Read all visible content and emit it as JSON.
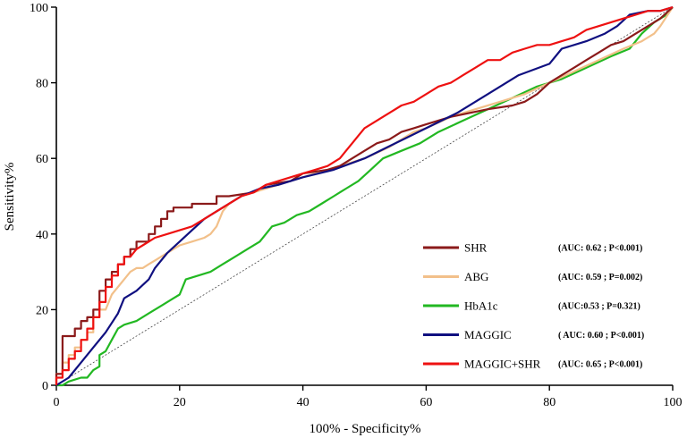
{
  "chart_data": {
    "type": "line",
    "title": "",
    "xlabel": "100% - Specificity%",
    "ylabel": "Sensitivity%",
    "xlim": [
      0,
      100
    ],
    "ylim": [
      0,
      100
    ],
    "xticks": [
      "0",
      "20",
      "40",
      "60",
      "80",
      "100"
    ],
    "yticks": [
      "0",
      "20",
      "40",
      "60",
      "80",
      "100"
    ],
    "grid": false,
    "legend_position": "bottom-right",
    "reference_line": {
      "name": "chance",
      "points": [
        [
          0,
          0
        ],
        [
          100,
          100
        ]
      ]
    },
    "series": [
      {
        "name": "SHR",
        "stat": "(AUC: 0.62 ; P<0.001)",
        "color": "#8b1a1a",
        "points": [
          [
            0,
            0
          ],
          [
            0,
            3
          ],
          [
            1,
            3
          ],
          [
            1,
            13
          ],
          [
            3,
            13
          ],
          [
            3,
            15
          ],
          [
            4,
            15
          ],
          [
            4,
            17
          ],
          [
            5,
            17
          ],
          [
            5,
            18
          ],
          [
            6,
            18
          ],
          [
            6,
            20
          ],
          [
            7,
            20
          ],
          [
            7,
            25
          ],
          [
            8,
            25
          ],
          [
            8,
            28
          ],
          [
            9,
            28
          ],
          [
            9,
            30
          ],
          [
            10,
            30
          ],
          [
            10,
            32
          ],
          [
            11,
            32
          ],
          [
            11,
            34
          ],
          [
            12,
            34
          ],
          [
            12,
            36
          ],
          [
            13,
            36
          ],
          [
            13,
            38
          ],
          [
            15,
            38
          ],
          [
            15,
            40
          ],
          [
            16,
            40
          ],
          [
            16,
            42
          ],
          [
            17,
            42
          ],
          [
            17,
            44
          ],
          [
            18,
            44
          ],
          [
            18,
            46
          ],
          [
            19,
            46
          ],
          [
            19,
            47
          ],
          [
            22,
            47
          ],
          [
            22,
            48
          ],
          [
            26,
            48
          ],
          [
            26,
            50
          ],
          [
            28,
            50
          ],
          [
            32,
            51
          ],
          [
            34,
            53
          ],
          [
            38,
            54
          ],
          [
            40,
            56
          ],
          [
            44,
            57
          ],
          [
            46,
            58
          ],
          [
            48,
            60
          ],
          [
            50,
            62
          ],
          [
            52,
            64
          ],
          [
            54,
            65
          ],
          [
            56,
            67
          ],
          [
            58,
            68
          ],
          [
            60,
            69
          ],
          [
            64,
            71
          ],
          [
            67,
            72
          ],
          [
            70,
            73
          ],
          [
            74,
            74
          ],
          [
            76,
            75
          ],
          [
            78,
            77
          ],
          [
            80,
            80
          ],
          [
            82,
            82
          ],
          [
            84,
            84
          ],
          [
            86,
            86
          ],
          [
            88,
            88
          ],
          [
            90,
            90
          ],
          [
            92,
            91
          ],
          [
            94,
            93
          ],
          [
            96,
            95
          ],
          [
            98,
            97
          ],
          [
            100,
            100
          ]
        ]
      },
      {
        "name": "ABG",
        "stat": "(AUC: 0.59 ; P=0.002)",
        "color": "#f2c08a",
        "points": [
          [
            0,
            0
          ],
          [
            0,
            3
          ],
          [
            1,
            3
          ],
          [
            1,
            6
          ],
          [
            2,
            6
          ],
          [
            2,
            8
          ],
          [
            3,
            8
          ],
          [
            3,
            10
          ],
          [
            4,
            10
          ],
          [
            4,
            12
          ],
          [
            5,
            12
          ],
          [
            5,
            14
          ],
          [
            6,
            14
          ],
          [
            6,
            18
          ],
          [
            7,
            18
          ],
          [
            7,
            20
          ],
          [
            8,
            20
          ],
          [
            9,
            24
          ],
          [
            10,
            26
          ],
          [
            11,
            28
          ],
          [
            12,
            30
          ],
          [
            13,
            31
          ],
          [
            14,
            31
          ],
          [
            15,
            32
          ],
          [
            16,
            33
          ],
          [
            17,
            34
          ],
          [
            18,
            35
          ],
          [
            19,
            36
          ],
          [
            20,
            37
          ],
          [
            22,
            38
          ],
          [
            24,
            39
          ],
          [
            25,
            40
          ],
          [
            26,
            42
          ],
          [
            27,
            46
          ],
          [
            28,
            48
          ],
          [
            30,
            50
          ],
          [
            34,
            52
          ],
          [
            38,
            54
          ],
          [
            42,
            56
          ],
          [
            46,
            58
          ],
          [
            50,
            60
          ],
          [
            54,
            63
          ],
          [
            56,
            65
          ],
          [
            58,
            67
          ],
          [
            60,
            68
          ],
          [
            64,
            71
          ],
          [
            68,
            73
          ],
          [
            72,
            75
          ],
          [
            76,
            77
          ],
          [
            80,
            80
          ],
          [
            84,
            83
          ],
          [
            88,
            86
          ],
          [
            92,
            89
          ],
          [
            95,
            91
          ],
          [
            97,
            93
          ],
          [
            98,
            95
          ],
          [
            100,
            100
          ]
        ]
      },
      {
        "name": "HbA1c",
        "stat": "(AUC:0.53 ; P=0.321)",
        "color": "#22b822",
        "points": [
          [
            0,
            0
          ],
          [
            1,
            0
          ],
          [
            2,
            1
          ],
          [
            4,
            2
          ],
          [
            5,
            2
          ],
          [
            6,
            4
          ],
          [
            7,
            5
          ],
          [
            7,
            8
          ],
          [
            8,
            9
          ],
          [
            9,
            12
          ],
          [
            10,
            15
          ],
          [
            11,
            16
          ],
          [
            13,
            17
          ],
          [
            15,
            19
          ],
          [
            17,
            21
          ],
          [
            19,
            23
          ],
          [
            20,
            24
          ],
          [
            21,
            28
          ],
          [
            23,
            29
          ],
          [
            25,
            30
          ],
          [
            27,
            32
          ],
          [
            29,
            34
          ],
          [
            31,
            36
          ],
          [
            33,
            38
          ],
          [
            35,
            42
          ],
          [
            37,
            43
          ],
          [
            39,
            45
          ],
          [
            41,
            46
          ],
          [
            43,
            48
          ],
          [
            45,
            50
          ],
          [
            47,
            52
          ],
          [
            49,
            54
          ],
          [
            51,
            57
          ],
          [
            53,
            60
          ],
          [
            56,
            62
          ],
          [
            59,
            64
          ],
          [
            62,
            67
          ],
          [
            66,
            70
          ],
          [
            70,
            73
          ],
          [
            74,
            76
          ],
          [
            78,
            79
          ],
          [
            82,
            81
          ],
          [
            86,
            84
          ],
          [
            90,
            87
          ],
          [
            93,
            89
          ],
          [
            95,
            93
          ],
          [
            97,
            96
          ],
          [
            99,
            98
          ],
          [
            100,
            100
          ]
        ]
      },
      {
        "name": "MAGGIC",
        "stat": "( AUC: 0.60 ; P<0.001)",
        "color": "#101080",
        "points": [
          [
            0,
            0
          ],
          [
            2,
            2
          ],
          [
            4,
            6
          ],
          [
            6,
            10
          ],
          [
            8,
            14
          ],
          [
            10,
            19
          ],
          [
            11,
            23
          ],
          [
            13,
            25
          ],
          [
            15,
            28
          ],
          [
            16,
            31
          ],
          [
            18,
            35
          ],
          [
            20,
            38
          ],
          [
            22,
            41
          ],
          [
            24,
            44
          ],
          [
            27,
            47
          ],
          [
            30,
            50
          ],
          [
            33,
            52
          ],
          [
            36,
            53
          ],
          [
            40,
            55
          ],
          [
            45,
            57
          ],
          [
            50,
            60
          ],
          [
            55,
            64
          ],
          [
            60,
            68
          ],
          [
            65,
            72
          ],
          [
            70,
            77
          ],
          [
            75,
            82
          ],
          [
            80,
            85
          ],
          [
            82,
            89
          ],
          [
            86,
            91
          ],
          [
            89,
            93
          ],
          [
            91,
            95
          ],
          [
            93,
            98
          ],
          [
            96,
            99
          ],
          [
            98,
            99
          ],
          [
            100,
            100
          ]
        ]
      },
      {
        "name": "MAGGIC+SHR",
        "stat": "(AUC: 0.65 ; P<0.001)",
        "color": "#ee1111",
        "points": [
          [
            0,
            0
          ],
          [
            0,
            2
          ],
          [
            1,
            2
          ],
          [
            1,
            4
          ],
          [
            2,
            4
          ],
          [
            2,
            7
          ],
          [
            3,
            7
          ],
          [
            3,
            9
          ],
          [
            4,
            9
          ],
          [
            4,
            12
          ],
          [
            5,
            12
          ],
          [
            5,
            15
          ],
          [
            6,
            15
          ],
          [
            6,
            18
          ],
          [
            7,
            18
          ],
          [
            7,
            22
          ],
          [
            8,
            22
          ],
          [
            8,
            26
          ],
          [
            9,
            26
          ],
          [
            9,
            29
          ],
          [
            10,
            29
          ],
          [
            10,
            32
          ],
          [
            11,
            32
          ],
          [
            11,
            34
          ],
          [
            12,
            34
          ],
          [
            13,
            36
          ],
          [
            14,
            37
          ],
          [
            15,
            38
          ],
          [
            16,
            39
          ],
          [
            18,
            40
          ],
          [
            20,
            41
          ],
          [
            22,
            42
          ],
          [
            24,
            44
          ],
          [
            26,
            46
          ],
          [
            28,
            48
          ],
          [
            30,
            50
          ],
          [
            32,
            51
          ],
          [
            34,
            53
          ],
          [
            36,
            54
          ],
          [
            38,
            55
          ],
          [
            40,
            56
          ],
          [
            42,
            57
          ],
          [
            44,
            58
          ],
          [
            46,
            60
          ],
          [
            47,
            62
          ],
          [
            48,
            64
          ],
          [
            49,
            66
          ],
          [
            50,
            68
          ],
          [
            52,
            70
          ],
          [
            54,
            72
          ],
          [
            56,
            74
          ],
          [
            58,
            75
          ],
          [
            60,
            77
          ],
          [
            62,
            79
          ],
          [
            64,
            80
          ],
          [
            66,
            82
          ],
          [
            68,
            84
          ],
          [
            70,
            86
          ],
          [
            72,
            86
          ],
          [
            74,
            88
          ],
          [
            76,
            89
          ],
          [
            78,
            90
          ],
          [
            80,
            90
          ],
          [
            82,
            91
          ],
          [
            84,
            92
          ],
          [
            86,
            94
          ],
          [
            88,
            95
          ],
          [
            90,
            96
          ],
          [
            92,
            97
          ],
          [
            94,
            98
          ],
          [
            96,
            99
          ],
          [
            98,
            99
          ],
          [
            100,
            100
          ]
        ]
      }
    ]
  }
}
